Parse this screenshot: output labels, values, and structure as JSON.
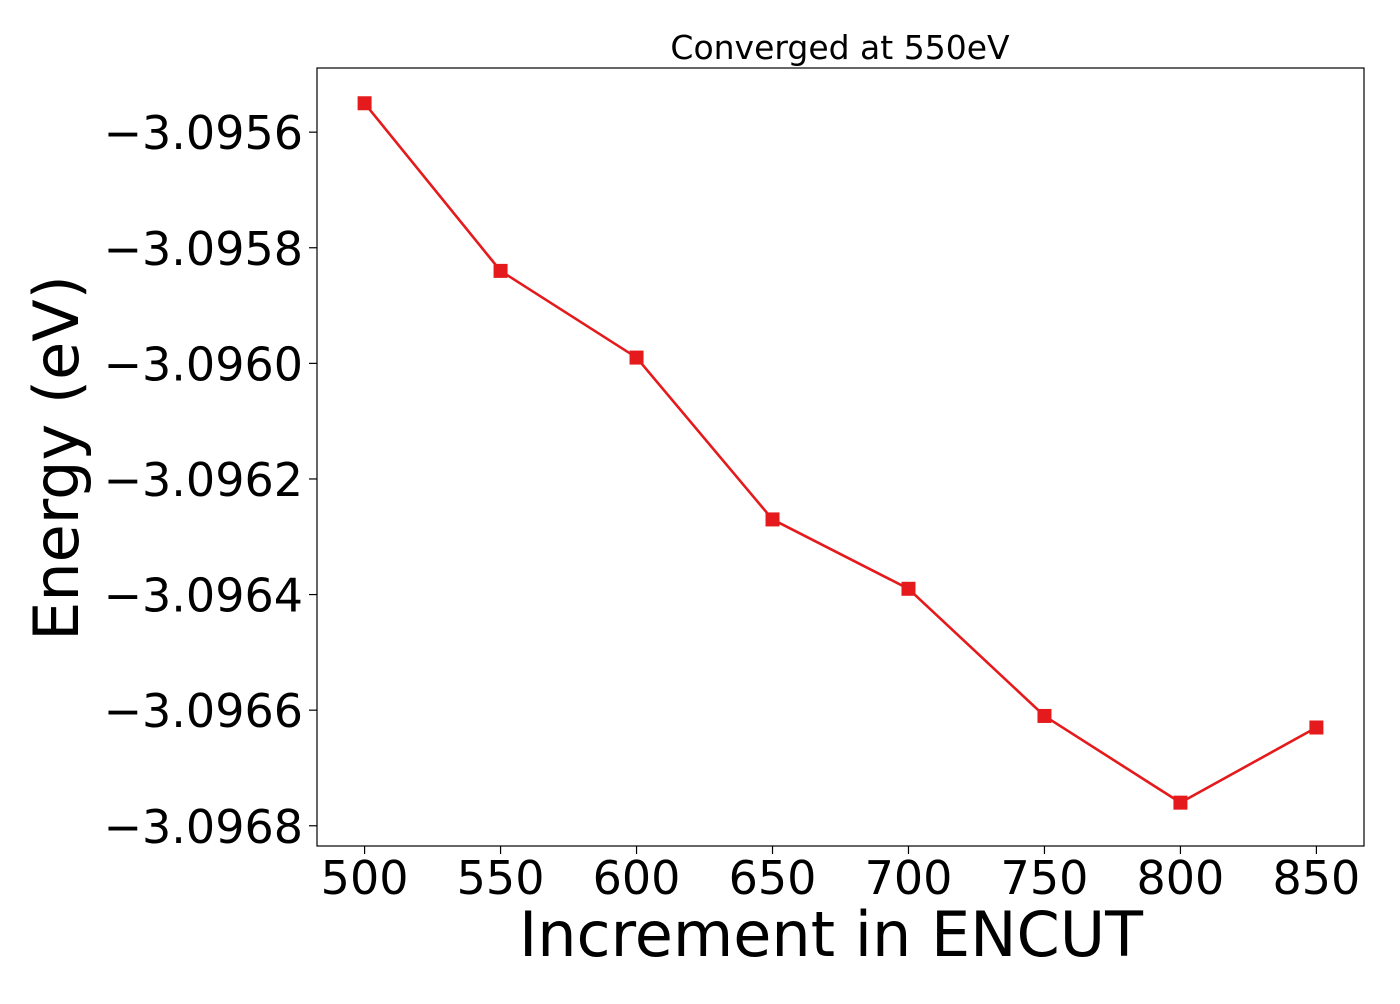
{
  "chart_data": {
    "type": "line",
    "title": "Converged at 550eV",
    "xlabel": "Increment in ENCUT",
    "ylabel": "Energy (eV)",
    "x": [
      500,
      550,
      600,
      650,
      700,
      750,
      800,
      850
    ],
    "series": [
      {
        "values": [
          -3.09555,
          -3.09584,
          -3.09599,
          -3.09627,
          -3.09639,
          -3.09661,
          -3.09676,
          -3.09663
        ],
        "color": "#e41a1c",
        "marker": "square"
      }
    ],
    "xlim": [
      482.5,
      867.5
    ],
    "ylim": [
      -3.096835,
      -3.095489
    ],
    "x_ticks": [
      500,
      550,
      600,
      650,
      700,
      750,
      800,
      850
    ],
    "x_tick_labels": [
      "500",
      "550",
      "600",
      "650",
      "700",
      "750",
      "800",
      "850"
    ],
    "y_ticks": [
      -3.0956,
      -3.0958,
      -3.096,
      -3.0962,
      -3.0964,
      -3.0966,
      -3.0968
    ],
    "y_tick_labels": [
      "−3.0956",
      "−3.0958",
      "−3.0960",
      "−3.0962",
      "−3.0964",
      "−3.0966",
      "−3.0968"
    ],
    "grid": false,
    "legend": "none"
  }
}
